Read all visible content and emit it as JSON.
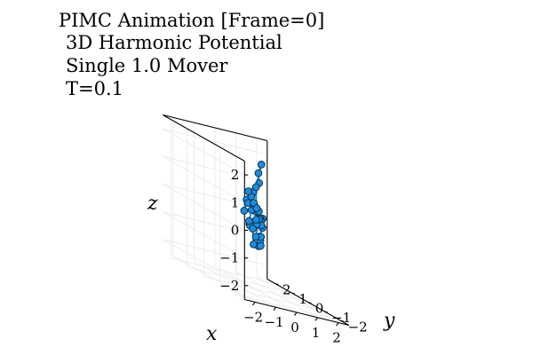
{
  "chart_data": {
    "type": "scatter3d",
    "title_lines": [
      "PIMC Animation [Frame=0]",
      "3D Harmonic Potential",
      "Single 1.0 Mover",
      "T=0.1"
    ],
    "xlabel": "x",
    "ylabel": "y",
    "zlabel": "z",
    "xlim": [
      -2.5,
      2.5
    ],
    "ylim": [
      -2.5,
      2.5
    ],
    "zlim": [
      -2.5,
      2.5
    ],
    "x_ticks": [
      "−2",
      "−1",
      "0",
      "1",
      "2"
    ],
    "y_ticks": [
      "−2",
      "−1",
      "0",
      "1",
      "2"
    ],
    "z_ticks": [
      "2",
      "1",
      "0",
      "−1",
      "−2"
    ],
    "grid": true,
    "marker_color": "#1a8de0",
    "line_color": "#1e90d6",
    "series": [
      {
        "points": [
          [
            0.5,
            0.3,
            2.0
          ],
          [
            0.2,
            0.1,
            1.7
          ],
          [
            0.0,
            -0.2,
            1.4
          ],
          [
            -0.5,
            -0.5,
            1.1
          ],
          [
            -0.6,
            -0.2,
            0.7
          ],
          [
            -0.4,
            0.2,
            0.2
          ],
          [
            0.0,
            0.0,
            0.3
          ],
          [
            0.3,
            0.2,
            0.3
          ],
          [
            0.8,
            0.6,
            0.0
          ],
          [
            1.2,
            1.2,
            -0.2
          ],
          [
            1.5,
            1.5,
            -0.5
          ],
          [
            1.6,
            1.8,
            -0.9
          ],
          [
            1.3,
            1.5,
            -1.2
          ],
          [
            1.0,
            1.0,
            -0.9
          ],
          [
            0.7,
            0.6,
            -1.0
          ],
          [
            0.4,
            0.2,
            -0.6
          ],
          [
            0.5,
            0.3,
            -0.2
          ],
          [
            0.2,
            0.0,
            0.1
          ],
          [
            -0.2,
            -0.3,
            -0.1
          ],
          [
            -0.7,
            -0.5,
            -0.1
          ],
          [
            -0.9,
            -0.8,
            -0.1
          ],
          [
            -1.1,
            -1.0,
            0.1
          ],
          [
            -0.9,
            -0.9,
            0.5
          ],
          [
            -1.0,
            -1.0,
            1.0
          ],
          [
            -1.3,
            -1.2,
            1.2
          ],
          [
            -1.0,
            -0.8,
            0.7
          ],
          [
            -0.4,
            -0.4,
            0.6
          ],
          [
            -0.1,
            0.0,
            0.6
          ],
          [
            0.2,
            0.2,
            0.4
          ],
          [
            0.4,
            0.3,
            0.0
          ],
          [
            0.0,
            0.0,
            -0.6
          ],
          [
            -0.5,
            -0.5,
            -0.8
          ],
          [
            -0.3,
            -0.2,
            -0.3
          ],
          [
            0.1,
            0.1,
            0.0
          ],
          [
            0.4,
            0.5,
            1.1
          ],
          [
            0.5,
            0.3,
            2.0
          ]
        ]
      }
    ]
  }
}
